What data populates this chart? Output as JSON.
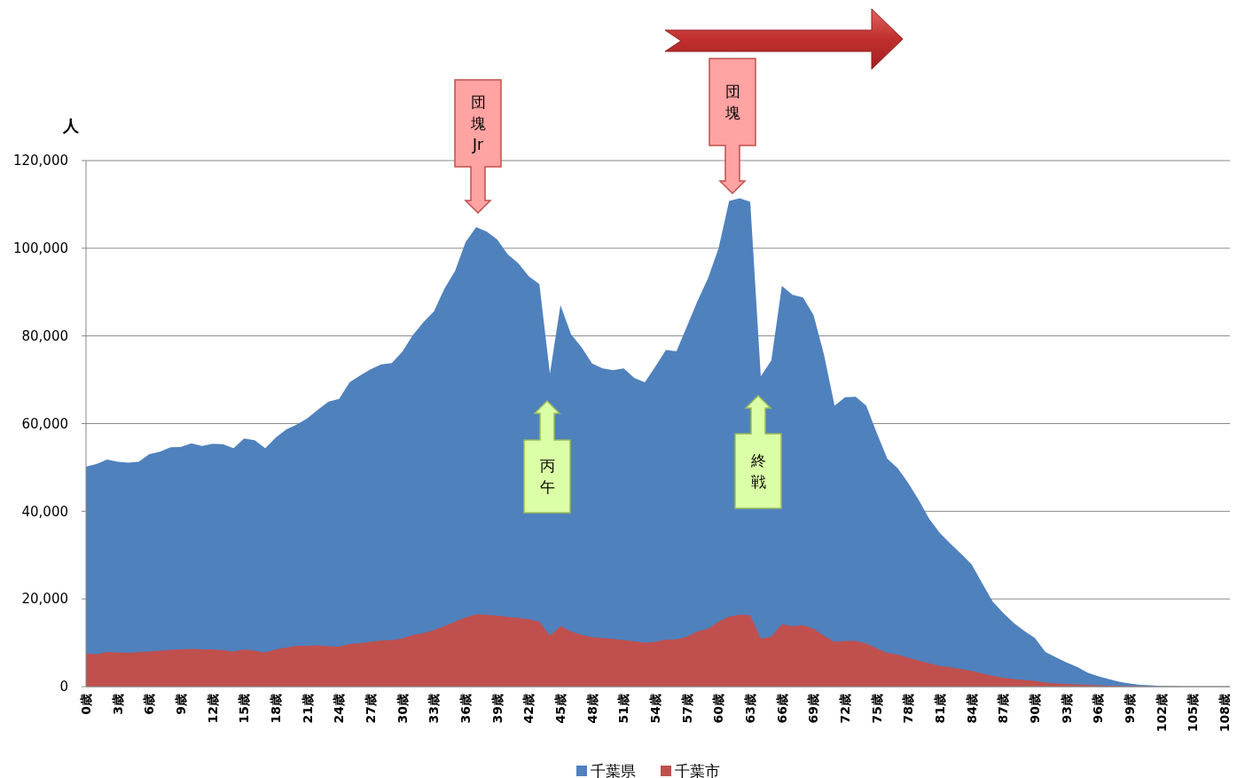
{
  "chart_data": {
    "type": "area",
    "ylabel": "人",
    "categories": [
      "0歳",
      null,
      null,
      "3歳",
      null,
      null,
      "6歳",
      null,
      null,
      "9歳",
      null,
      null,
      "12歳",
      null,
      null,
      "15歳",
      null,
      null,
      "18歳",
      null,
      null,
      "21歳",
      null,
      null,
      "24歳",
      null,
      null,
      "27歳",
      null,
      null,
      "30歳",
      null,
      null,
      "33歳",
      null,
      null,
      "36歳",
      null,
      null,
      "39歳",
      null,
      null,
      "42歳",
      null,
      null,
      "45歳",
      null,
      null,
      "48歳",
      null,
      null,
      "51歳",
      null,
      null,
      "54歳",
      null,
      null,
      "57歳",
      null,
      null,
      "60歳",
      null,
      null,
      "63歳",
      null,
      null,
      "66歳",
      null,
      null,
      "69歳",
      null,
      null,
      "72歳",
      null,
      null,
      "75歳",
      null,
      null,
      "78歳",
      null,
      null,
      "81歳",
      null,
      null,
      "84歳",
      null,
      null,
      "87歳",
      null,
      null,
      "90歳",
      null,
      null,
      "93歳",
      null,
      null,
      "96歳",
      null,
      null,
      "99歳",
      null,
      null,
      "102歳",
      null,
      null,
      "105歳",
      null,
      null,
      "108歳",
      null
    ],
    "series": [
      {
        "name": "千葉県",
        "color": "#4f81bd",
        "values": [
          50200,
          50800,
          51800,
          51300,
          51100,
          51300,
          53000,
          53600,
          54600,
          54700,
          55500,
          54900,
          55400,
          55300,
          54400,
          56600,
          56200,
          54400,
          56800,
          58700,
          59800,
          61200,
          63200,
          65000,
          65600,
          69400,
          71000,
          72400,
          73500,
          73800,
          76400,
          80200,
          83100,
          85600,
          90800,
          94800,
          101400,
          104800,
          103800,
          102000,
          98600,
          96600,
          93600,
          91800,
          71400,
          87000,
          80400,
          77400,
          73700,
          72600,
          72200,
          72600,
          70400,
          69400,
          73000,
          76800,
          76500,
          82200,
          88000,
          93200,
          100000,
          110800,
          111400,
          110600,
          70800,
          74400,
          91400,
          89400,
          88800,
          84800,
          75700,
          64100,
          66000,
          66100,
          64100,
          57900,
          52000,
          49800,
          46400,
          42500,
          38200,
          35000,
          32600,
          30300,
          27900,
          23600,
          19400,
          16800,
          14500,
          12700,
          11100,
          7900,
          6700,
          5500,
          4500,
          3200,
          2400,
          1700,
          1100,
          700,
          400,
          300,
          100,
          100,
          0,
          0,
          0,
          0,
          0,
          0
        ]
      },
      {
        "name": "千葉市",
        "color": "#c0504d",
        "values": [
          7600,
          7400,
          7900,
          7800,
          7700,
          7900,
          8000,
          8200,
          8400,
          8500,
          8600,
          8500,
          8500,
          8300,
          8000,
          8500,
          8200,
          7800,
          8500,
          8900,
          9300,
          9300,
          9400,
          9200,
          9100,
          9700,
          9900,
          10200,
          10500,
          10600,
          11000,
          11800,
          12200,
          12900,
          13800,
          14800,
          15800,
          16500,
          16400,
          16200,
          15900,
          15700,
          15400,
          14800,
          11600,
          13800,
          12600,
          11800,
          11300,
          11100,
          10900,
          10600,
          10300,
          10000,
          10200,
          10700,
          10800,
          11400,
          12600,
          13200,
          14800,
          16000,
          16400,
          16300,
          11000,
          11400,
          14200,
          13800,
          14000,
          13200,
          11600,
          10200,
          10400,
          10400,
          9800,
          8700,
          7700,
          7300,
          6600,
          5900,
          5300,
          4700,
          4400,
          4000,
          3600,
          3000,
          2500,
          2000,
          1700,
          1500,
          1300,
          900,
          700,
          600,
          500,
          400,
          300,
          200,
          200,
          100,
          100,
          0,
          0,
          0,
          0,
          0,
          0,
          0,
          0,
          0
        ]
      }
    ],
    "ylim": [
      0,
      120000
    ],
    "yticks": [
      {
        "value": 0,
        "label": "0"
      },
      {
        "value": 20000,
        "label": "20,000"
      },
      {
        "value": 40000,
        "label": "40,000"
      },
      {
        "value": 60000,
        "label": "60,000"
      },
      {
        "value": 80000,
        "label": "80,000"
      },
      {
        "value": 100000,
        "label": "100,000"
      },
      {
        "value": 120000,
        "label": "120,000"
      }
    ],
    "grid": "y",
    "legend": "bottom",
    "annotations": [
      "団塊Jr",
      "丙午",
      "団塊",
      "終戦"
    ]
  }
}
